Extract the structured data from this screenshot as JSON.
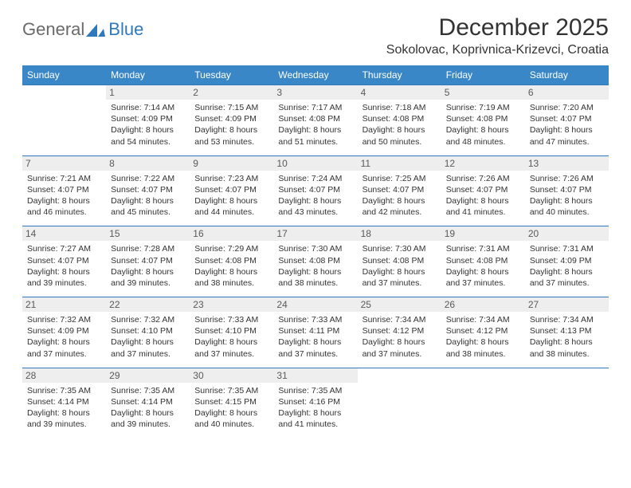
{
  "logo": {
    "general": "General",
    "blue": "Blue"
  },
  "title": "December 2025",
  "location": "Sokolovac, Koprivnica-Krizevci, Croatia",
  "colors": {
    "header_bg": "#3a87c8",
    "header_text": "#ffffff",
    "border": "#2f78bd",
    "daynum_bg": "#eeeeee",
    "text": "#333333",
    "logo_gray": "#6a6a6a",
    "logo_blue": "#2f78bd",
    "background": "#ffffff"
  },
  "weekdays": [
    "Sunday",
    "Monday",
    "Tuesday",
    "Wednesday",
    "Thursday",
    "Friday",
    "Saturday"
  ],
  "weeks": [
    [
      null,
      {
        "n": "1",
        "sr": "7:14 AM",
        "ss": "4:09 PM",
        "dl": "8 hours and 54 minutes."
      },
      {
        "n": "2",
        "sr": "7:15 AM",
        "ss": "4:09 PM",
        "dl": "8 hours and 53 minutes."
      },
      {
        "n": "3",
        "sr": "7:17 AM",
        "ss": "4:08 PM",
        "dl": "8 hours and 51 minutes."
      },
      {
        "n": "4",
        "sr": "7:18 AM",
        "ss": "4:08 PM",
        "dl": "8 hours and 50 minutes."
      },
      {
        "n": "5",
        "sr": "7:19 AM",
        "ss": "4:08 PM",
        "dl": "8 hours and 48 minutes."
      },
      {
        "n": "6",
        "sr": "7:20 AM",
        "ss": "4:07 PM",
        "dl": "8 hours and 47 minutes."
      }
    ],
    [
      {
        "n": "7",
        "sr": "7:21 AM",
        "ss": "4:07 PM",
        "dl": "8 hours and 46 minutes."
      },
      {
        "n": "8",
        "sr": "7:22 AM",
        "ss": "4:07 PM",
        "dl": "8 hours and 45 minutes."
      },
      {
        "n": "9",
        "sr": "7:23 AM",
        "ss": "4:07 PM",
        "dl": "8 hours and 44 minutes."
      },
      {
        "n": "10",
        "sr": "7:24 AM",
        "ss": "4:07 PM",
        "dl": "8 hours and 43 minutes."
      },
      {
        "n": "11",
        "sr": "7:25 AM",
        "ss": "4:07 PM",
        "dl": "8 hours and 42 minutes."
      },
      {
        "n": "12",
        "sr": "7:26 AM",
        "ss": "4:07 PM",
        "dl": "8 hours and 41 minutes."
      },
      {
        "n": "13",
        "sr": "7:26 AM",
        "ss": "4:07 PM",
        "dl": "8 hours and 40 minutes."
      }
    ],
    [
      {
        "n": "14",
        "sr": "7:27 AM",
        "ss": "4:07 PM",
        "dl": "8 hours and 39 minutes."
      },
      {
        "n": "15",
        "sr": "7:28 AM",
        "ss": "4:07 PM",
        "dl": "8 hours and 39 minutes."
      },
      {
        "n": "16",
        "sr": "7:29 AM",
        "ss": "4:08 PM",
        "dl": "8 hours and 38 minutes."
      },
      {
        "n": "17",
        "sr": "7:30 AM",
        "ss": "4:08 PM",
        "dl": "8 hours and 38 minutes."
      },
      {
        "n": "18",
        "sr": "7:30 AM",
        "ss": "4:08 PM",
        "dl": "8 hours and 37 minutes."
      },
      {
        "n": "19",
        "sr": "7:31 AM",
        "ss": "4:08 PM",
        "dl": "8 hours and 37 minutes."
      },
      {
        "n": "20",
        "sr": "7:31 AM",
        "ss": "4:09 PM",
        "dl": "8 hours and 37 minutes."
      }
    ],
    [
      {
        "n": "21",
        "sr": "7:32 AM",
        "ss": "4:09 PM",
        "dl": "8 hours and 37 minutes."
      },
      {
        "n": "22",
        "sr": "7:32 AM",
        "ss": "4:10 PM",
        "dl": "8 hours and 37 minutes."
      },
      {
        "n": "23",
        "sr": "7:33 AM",
        "ss": "4:10 PM",
        "dl": "8 hours and 37 minutes."
      },
      {
        "n": "24",
        "sr": "7:33 AM",
        "ss": "4:11 PM",
        "dl": "8 hours and 37 minutes."
      },
      {
        "n": "25",
        "sr": "7:34 AM",
        "ss": "4:12 PM",
        "dl": "8 hours and 37 minutes."
      },
      {
        "n": "26",
        "sr": "7:34 AM",
        "ss": "4:12 PM",
        "dl": "8 hours and 38 minutes."
      },
      {
        "n": "27",
        "sr": "7:34 AM",
        "ss": "4:13 PM",
        "dl": "8 hours and 38 minutes."
      }
    ],
    [
      {
        "n": "28",
        "sr": "7:35 AM",
        "ss": "4:14 PM",
        "dl": "8 hours and 39 minutes."
      },
      {
        "n": "29",
        "sr": "7:35 AM",
        "ss": "4:14 PM",
        "dl": "8 hours and 39 minutes."
      },
      {
        "n": "30",
        "sr": "7:35 AM",
        "ss": "4:15 PM",
        "dl": "8 hours and 40 minutes."
      },
      {
        "n": "31",
        "sr": "7:35 AM",
        "ss": "4:16 PM",
        "dl": "8 hours and 41 minutes."
      },
      null,
      null,
      null
    ]
  ]
}
